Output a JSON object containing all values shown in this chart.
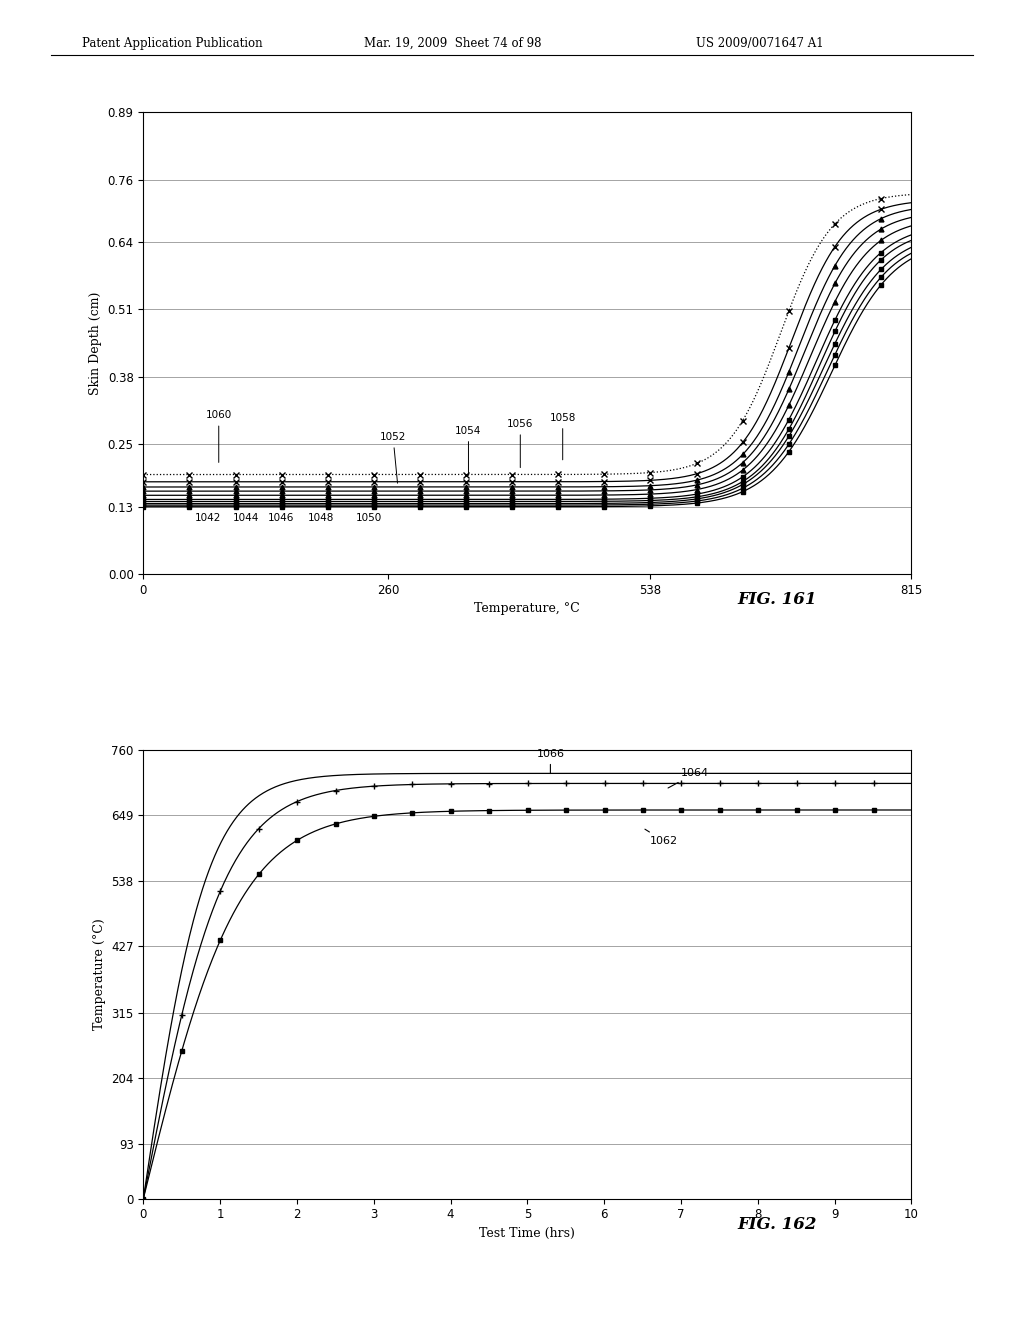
{
  "fig1": {
    "xlabel": "Temperature, °C",
    "ylabel": "Skin Depth (cm)",
    "xlim": [
      0,
      815
    ],
    "ylim": [
      0.0,
      0.89
    ],
    "xticks": [
      0,
      260,
      538,
      815
    ],
    "yticks": [
      0.0,
      0.13,
      0.25,
      0.38,
      0.51,
      0.64,
      0.76,
      0.89
    ]
  },
  "fig2": {
    "xlabel": "Test Time (hrs)",
    "ylabel": "Temperature (°C)",
    "xlim": [
      0,
      10
    ],
    "ylim": [
      0,
      760
    ],
    "xticks": [
      0,
      1,
      2,
      3,
      4,
      5,
      6,
      7,
      8,
      9,
      10
    ],
    "yticks": [
      0,
      93,
      204,
      315,
      427,
      538,
      649,
      760
    ]
  },
  "header_left": "Patent Application Publication",
  "header_center": "Mar. 19, 2009  Sheet 74 of 98",
  "header_right": "US 2009/0071647 A1",
  "fig1_label": "FIG. 161",
  "fig2_label": "FIG. 162",
  "bg_color": "#ffffff"
}
